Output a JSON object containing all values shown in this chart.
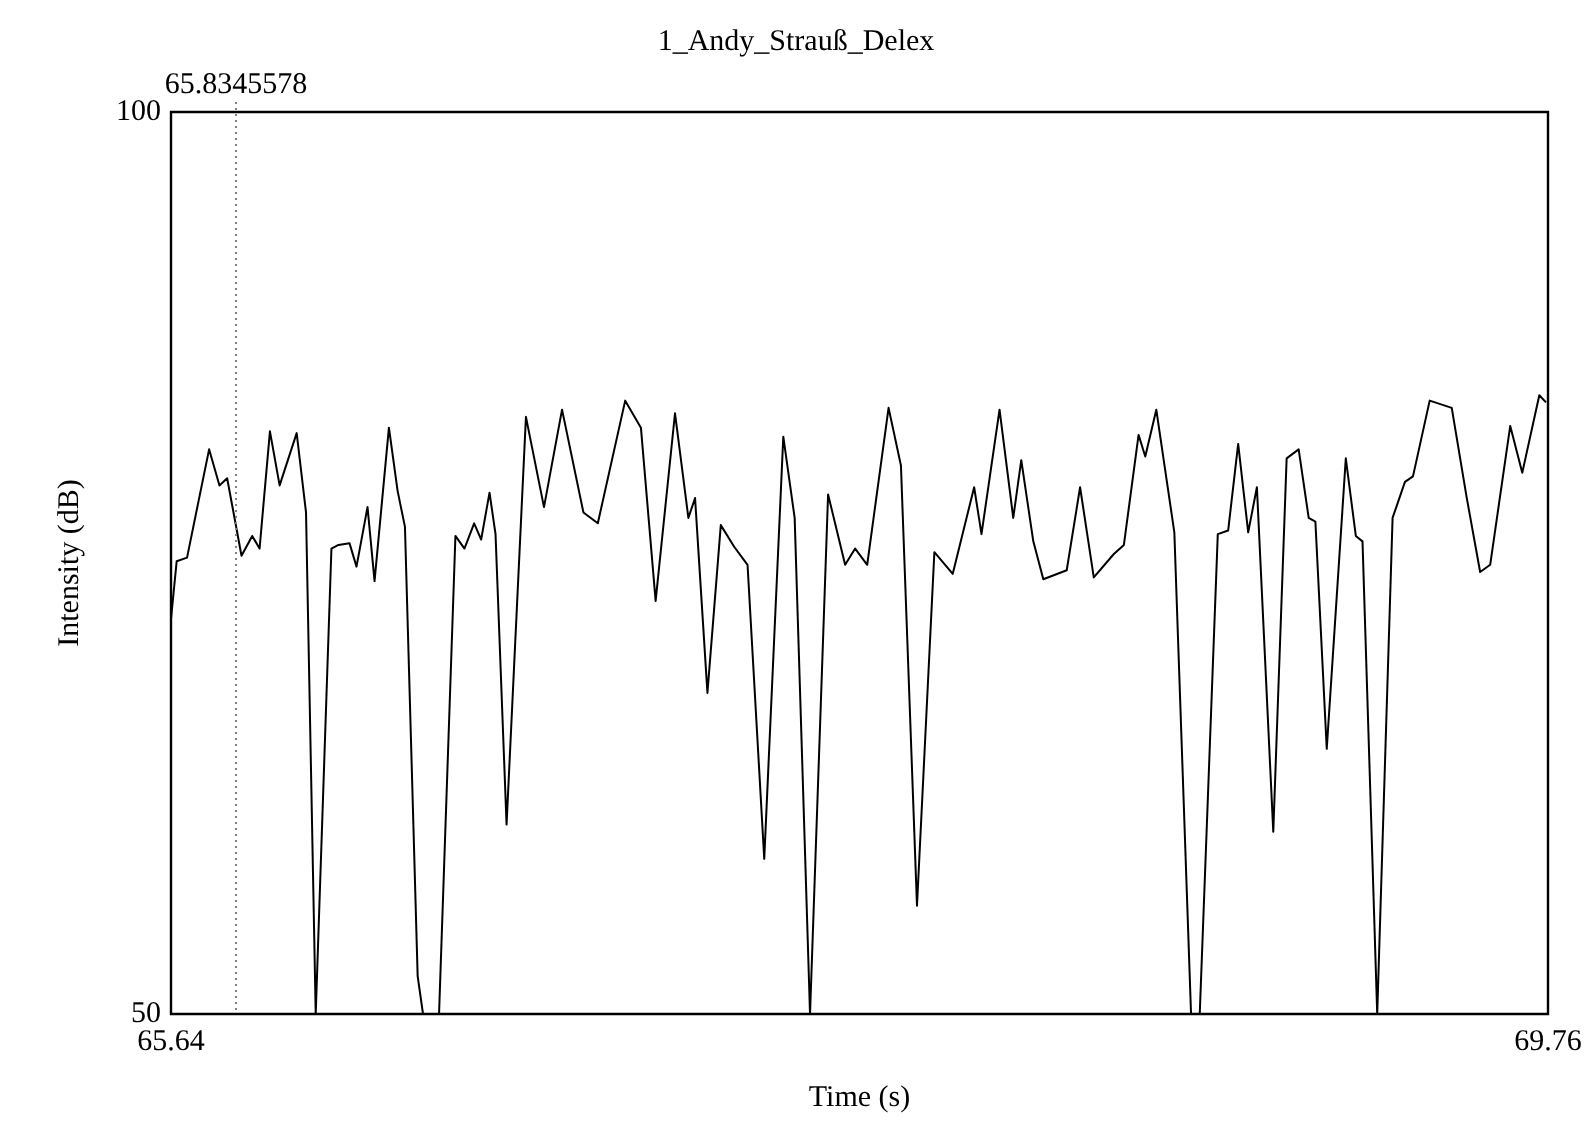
{
  "chart_data": {
    "type": "line",
    "title": "1_Andy_Strauß_Delex",
    "xlabel": "Time (s)",
    "ylabel": "Intensity (dB)",
    "xlim": [
      65.64,
      69.76
    ],
    "ylim": [
      50,
      100
    ],
    "xticks": [
      65.64,
      69.76
    ],
    "yticks": [
      50,
      100
    ],
    "grid": false,
    "legend": false,
    "marker": "none",
    "line_style": "solid",
    "ref_lines": [
      {
        "axis": "x",
        "value": 65.8345578,
        "label": "65.8345578",
        "line_style": "dotted",
        "color": "#808080"
      }
    ],
    "x": [
      65.64,
      65.657,
      65.688,
      65.754,
      65.785,
      65.808,
      65.851,
      65.883,
      65.905,
      65.936,
      65.965,
      66.016,
      66.044,
      66.073,
      66.12,
      66.141,
      66.174,
      66.195,
      66.228,
      66.249,
      66.292,
      66.318,
      66.34,
      66.378,
      66.394,
      66.442,
      66.491,
      66.518,
      66.547,
      66.568,
      66.593,
      66.611,
      66.644,
      66.702,
      66.756,
      66.81,
      66.874,
      66.917,
      66.999,
      67.046,
      67.09,
      67.148,
      67.188,
      67.208,
      67.245,
      67.285,
      67.325,
      67.365,
      67.415,
      67.472,
      67.506,
      67.552,
      67.606,
      67.657,
      67.687,
      67.723,
      67.787,
      67.824,
      67.872,
      67.924,
      67.979,
      68.043,
      68.065,
      68.119,
      68.16,
      68.184,
      68.22,
      68.25,
      68.32,
      68.36,
      68.401,
      68.461,
      68.491,
      68.535,
      68.555,
      68.588,
      68.642,
      68.692,
      68.718,
      68.772,
      68.803,
      68.833,
      68.863,
      68.889,
      68.938,
      68.978,
      69.014,
      69.044,
      69.064,
      69.098,
      69.155,
      69.185,
      69.205,
      69.249,
      69.295,
      69.332,
      69.356,
      69.406,
      69.472,
      69.517,
      69.557,
      69.587,
      69.647,
      69.683,
      69.734,
      69.754
    ],
    "series": [
      {
        "color": "#000000",
        "values": [
          71.9,
          75.1,
          75.3,
          81.3,
          79.3,
          79.7,
          75.4,
          76.5,
          75.8,
          82.3,
          79.3,
          82.2,
          77.8,
          50,
          75.8,
          76,
          76.1,
          74.8,
          78.1,
          74,
          82.5,
          79,
          77,
          52.1,
          50,
          50,
          76.5,
          75.8,
          77.2,
          76.3,
          78.9,
          76.6,
          60.5,
          83.1,
          78.1,
          83.5,
          77.8,
          77.2,
          84,
          82.5,
          72.9,
          83.3,
          77.5,
          78.6,
          67.8,
          77.1,
          75.9,
          74.9,
          58.6,
          82,
          77.5,
          50,
          78.8,
          74.9,
          75.8,
          74.9,
          83.6,
          80.4,
          56,
          75.6,
          74.4,
          79.2,
          76.6,
          83.5,
          77.5,
          80.7,
          76.2,
          74.1,
          74.6,
          79.2,
          74.2,
          75.5,
          76,
          82.1,
          80.9,
          83.5,
          76.7,
          50,
          50,
          76.6,
          76.8,
          81.6,
          76.7,
          79.2,
          60.1,
          80.8,
          81.3,
          77.5,
          77.3,
          64.7,
          80.8,
          76.5,
          76.2,
          50,
          77.5,
          79.5,
          79.8,
          84,
          83.6,
          78.6,
          74.5,
          74.9,
          82.6,
          80,
          84.3,
          83.9
        ]
      }
    ]
  }
}
